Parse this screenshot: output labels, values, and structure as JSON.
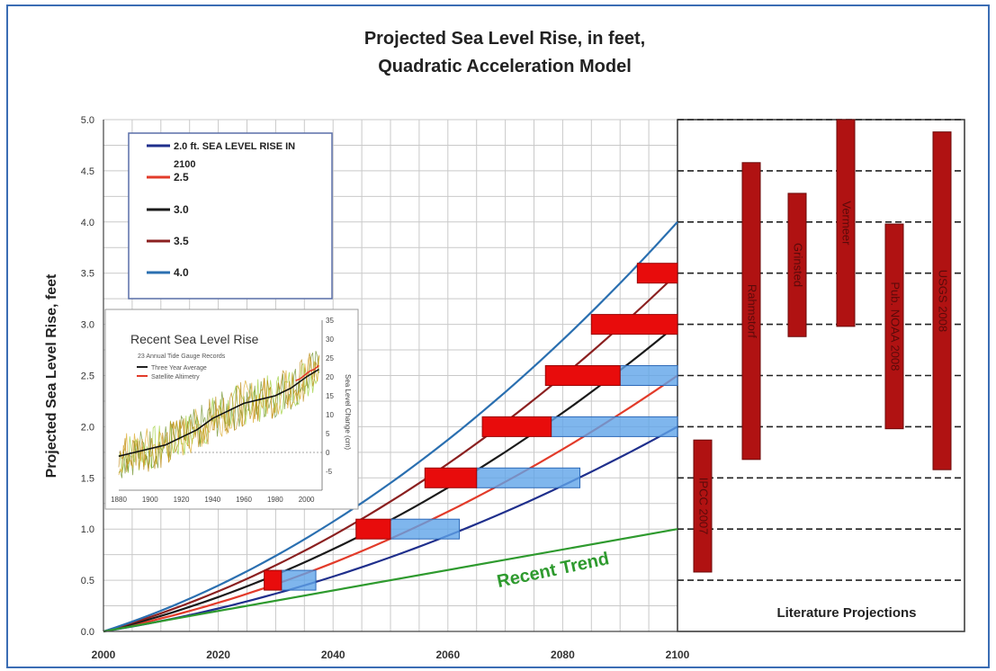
{
  "chart_data": {
    "type": "line",
    "title": [
      "Projected Sea Level Rise, in feet,",
      "Quadratic Acceleration Model"
    ],
    "ylabel": "Projected Sea Level Rise, feet",
    "xlim": [
      2000,
      2100
    ],
    "ylim": [
      0,
      5
    ],
    "x_ticks": [
      "2000",
      "2020",
      "2040",
      "2060",
      "2080",
      "2100"
    ],
    "y_ticks": [
      "0.0",
      "0.5",
      "1.0",
      "1.5",
      "2.0",
      "2.5",
      "3.0",
      "3.5",
      "4.0",
      "4.5",
      "5.0"
    ],
    "grid": true,
    "legend_position": "top-left",
    "legend": [
      {
        "label": "2.0 ft. SEA LEVEL RISE IN 2100",
        "color": "#1f2f8c"
      },
      {
        "label": "2.5",
        "color": "#e23b2a"
      },
      {
        "label": "3.0",
        "color": "#1a1a1a"
      },
      {
        "label": "3.5",
        "color": "#8b2020"
      },
      {
        "label": "4.0",
        "color": "#2a6fb0"
      }
    ],
    "series": [
      {
        "name": "2.0 ft. SEA LEVEL RISE IN 2100",
        "end_value": 2.0,
        "color": "#1f2f8c"
      },
      {
        "name": "2.5",
        "end_value": 2.5,
        "color": "#e23b2a"
      },
      {
        "name": "3.0",
        "end_value": 3.0,
        "color": "#1a1a1a"
      },
      {
        "name": "3.5",
        "end_value": 3.5,
        "color": "#8b2020"
      },
      {
        "name": "4.0",
        "end_value": 4.0,
        "color": "#2a6fb0"
      },
      {
        "name": "Recent Trend",
        "x": [
          2000,
          2100
        ],
        "y": [
          0,
          1.0
        ],
        "color": "#2e9a2e"
      }
    ],
    "recent_trend_label": "Recent Trend",
    "red_bars": [
      {
        "x0": 2028,
        "x1": 2031,
        "y": 0.5
      },
      {
        "x0": 2044,
        "x1": 2050,
        "y": 1.0
      },
      {
        "x0": 2056,
        "x1": 2065,
        "y": 1.5
      },
      {
        "x0": 2066,
        "x1": 2078,
        "y": 2.0
      },
      {
        "x0": 2077,
        "x1": 2090,
        "y": 2.5
      },
      {
        "x0": 2085,
        "x1": 2100,
        "y": 3.0
      },
      {
        "x0": 2093,
        "x1": 2100,
        "y": 3.5
      }
    ],
    "blue_bars": [
      {
        "x0": 2031,
        "x1": 2037,
        "y": 0.5
      },
      {
        "x0": 2050,
        "x1": 2062,
        "y": 1.0
      },
      {
        "x0": 2065,
        "x1": 2083,
        "y": 1.5
      },
      {
        "x0": 2078,
        "x1": 2100,
        "y": 2.0
      },
      {
        "x0": 2090,
        "x1": 2100,
        "y": 2.5
      }
    ],
    "literature_title": "Literature Projections",
    "literature": [
      {
        "label": "IPCC 2007",
        "low": 0.58,
        "high": 1.87
      },
      {
        "label": "Rahmstorf",
        "low": 1.68,
        "high": 4.58
      },
      {
        "label": "Grinsted",
        "low": 2.88,
        "high": 4.28
      },
      {
        "label": "Vermeer",
        "low": 2.98,
        "high": 5.0
      },
      {
        "label": "Pub. NOAA 2008",
        "low": 1.98,
        "high": 3.98
      },
      {
        "label": "USGS 2008",
        "low": 1.58,
        "high": 4.88
      }
    ],
    "inset": {
      "title": "Recent Sea Level Rise",
      "subtitle": "23 Annual Tide Gauge Records",
      "legend": [
        "Three Year Average",
        "Satellite Altimetry"
      ],
      "ylabel": "Sea Level Change (cm)",
      "xlim": [
        1880,
        2010
      ],
      "ylim": [
        -10,
        35
      ],
      "x_ticks": [
        "1880",
        "1900",
        "1920",
        "1940",
        "1960",
        "1980",
        "2000"
      ],
      "y_ticks": [
        "-5",
        "0",
        "5",
        "10",
        "15",
        "20",
        "25",
        "30",
        "35"
      ],
      "three_year_average": {
        "x": [
          1880,
          1890,
          1900,
          1910,
          1920,
          1930,
          1940,
          1950,
          1960,
          1970,
          1980,
          1990,
          2000,
          2008
        ],
        "y": [
          -1,
          0,
          1,
          2,
          4,
          6,
          9,
          11,
          13,
          14,
          15,
          17,
          20,
          22
        ]
      },
      "satellite_altimetry": {
        "x": [
          1993,
          1996,
          1999,
          2002,
          2005,
          2008
        ],
        "y": [
          19,
          19.5,
          20.5,
          21.5,
          22,
          23
        ]
      }
    }
  }
}
